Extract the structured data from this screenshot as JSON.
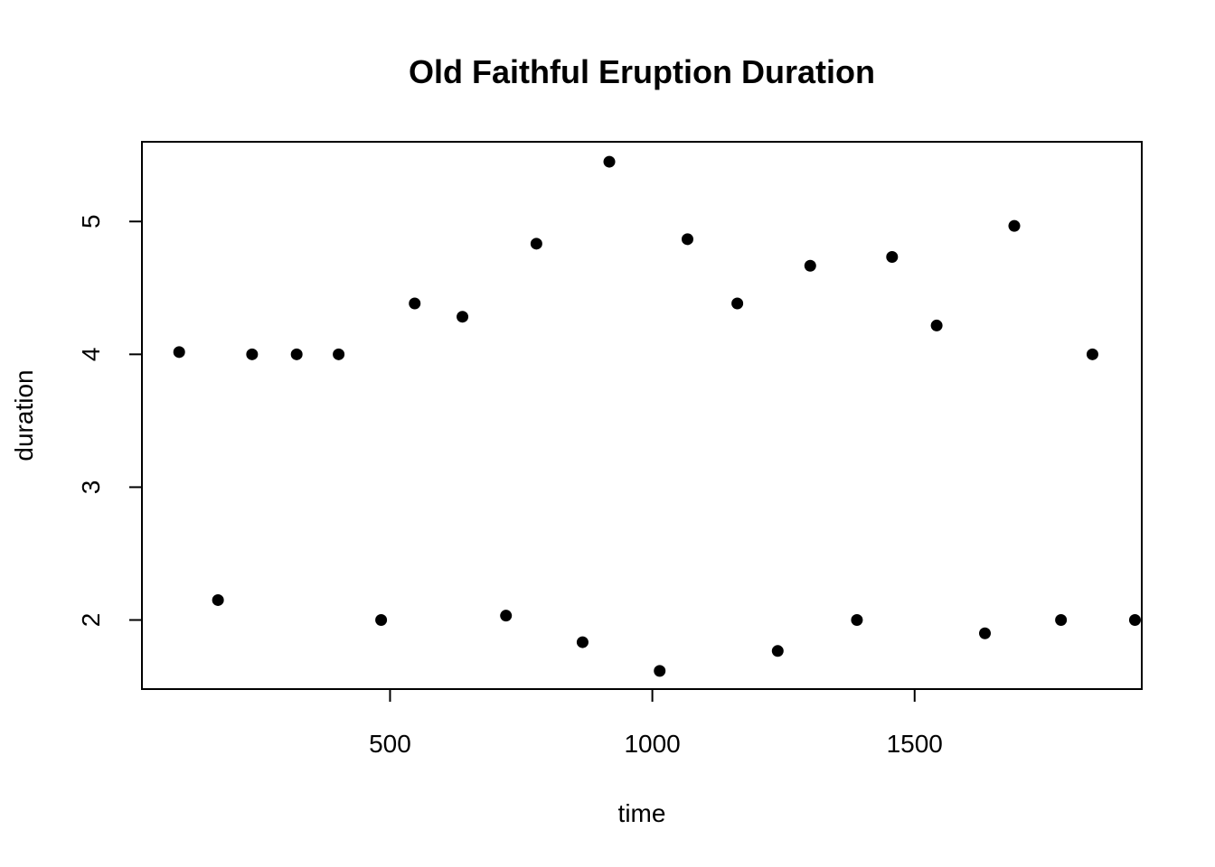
{
  "chart_data": {
    "type": "scatter",
    "title": "Old Faithful Eruption Duration",
    "xlabel": "time",
    "ylabel": "duration",
    "xlim": [
      27,
      1933
    ],
    "ylim": [
      1.48,
      5.6
    ],
    "xticks": [
      500,
      1000,
      1500
    ],
    "xtick_labels": [
      "500",
      "1000",
      "1500"
    ],
    "yticks": [
      2,
      3,
      4,
      5
    ],
    "ytick_labels": [
      "2",
      "3",
      "4",
      "5"
    ],
    "grid": false,
    "marker_color": "#000000",
    "points": [
      {
        "x": 98,
        "y": 4.017
      },
      {
        "x": 172,
        "y": 2.15
      },
      {
        "x": 237,
        "y": 4.0
      },
      {
        "x": 322,
        "y": 4.0
      },
      {
        "x": 402,
        "y": 4.0
      },
      {
        "x": 483,
        "y": 2.0
      },
      {
        "x": 547,
        "y": 4.383
      },
      {
        "x": 638,
        "y": 4.283
      },
      {
        "x": 721,
        "y": 2.033
      },
      {
        "x": 779,
        "y": 4.833
      },
      {
        "x": 867,
        "y": 1.833
      },
      {
        "x": 918,
        "y": 5.45
      },
      {
        "x": 1014,
        "y": 1.617
      },
      {
        "x": 1067,
        "y": 4.867
      },
      {
        "x": 1162,
        "y": 4.383
      },
      {
        "x": 1239,
        "y": 1.767
      },
      {
        "x": 1301,
        "y": 4.667
      },
      {
        "x": 1390,
        "y": 2.0
      },
      {
        "x": 1457,
        "y": 4.733
      },
      {
        "x": 1542,
        "y": 4.217
      },
      {
        "x": 1634,
        "y": 1.9
      },
      {
        "x": 1690,
        "y": 4.967
      },
      {
        "x": 1779,
        "y": 2.0
      },
      {
        "x": 1839,
        "y": 4.0
      },
      {
        "x": 1920,
        "y": 2.0
      }
    ]
  }
}
